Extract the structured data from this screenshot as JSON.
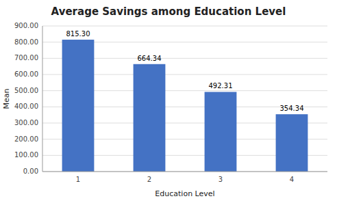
{
  "chart_data": {
    "type": "bar",
    "title": "Average Savings among Education Level",
    "xlabel": "Education Level",
    "ylabel": "Mean",
    "categories": [
      1,
      2,
      3,
      4
    ],
    "values": [
      815.3,
      664.34,
      492.31,
      354.34
    ],
    "value_labels": [
      "815.30",
      "664.34",
      "492.31",
      "354.34"
    ],
    "data_labels": true,
    "color": "#4472C4",
    "ylim": [
      0,
      900
    ],
    "yticks": [
      {
        "value": 0,
        "label": "0.00"
      },
      {
        "value": 100,
        "label": "100.00"
      },
      {
        "value": 200,
        "label": "200.00"
      },
      {
        "value": 300,
        "label": "300.00"
      },
      {
        "value": 400,
        "label": "400.00"
      },
      {
        "value": 500,
        "label": "500.00"
      },
      {
        "value": 600,
        "label": "600.00"
      },
      {
        "value": 700,
        "label": "700.00"
      },
      {
        "value": 800,
        "label": "800.00"
      },
      {
        "value": 900,
        "label": "900.00"
      }
    ],
    "grid": true
  }
}
